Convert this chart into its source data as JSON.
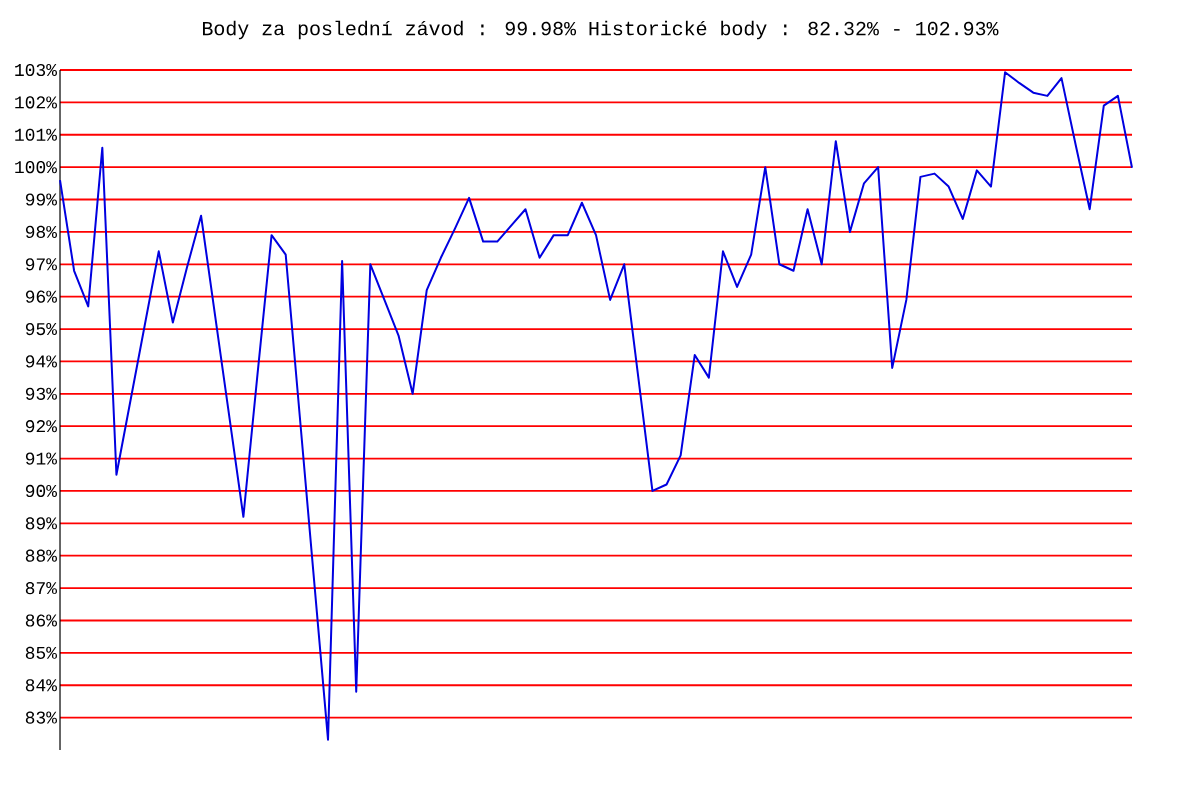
{
  "chart_data": {
    "type": "line",
    "title": "Body za poslední závod : 99.98%  Historické body : 82.32% - 102.93%",
    "categories": [
      null,
      null,
      null,
      null,
      null,
      null,
      null,
      null,
      null,
      null,
      null,
      null,
      null,
      null,
      null,
      null,
      null,
      null,
      null,
      null,
      null,
      null,
      null,
      null,
      null,
      null,
      null,
      null,
      null,
      null,
      null,
      null,
      null,
      null,
      null,
      null,
      null,
      null,
      null,
      null,
      null,
      null,
      null,
      null,
      null,
      null,
      null,
      null,
      null,
      null,
      null,
      null,
      null,
      null,
      null,
      null,
      null,
      null,
      null,
      null,
      null,
      null,
      null,
      null,
      null,
      null,
      null,
      null,
      null,
      null,
      null,
      null,
      null,
      null,
      null,
      null,
      null
    ],
    "series": [
      {
        "color": "#0000e0",
        "values": [
          99.6,
          96.8,
          95.7,
          100.6,
          90.5,
          92.8,
          95.1,
          97.4,
          95.2,
          96.9,
          98.5,
          95.4,
          92.3,
          89.2,
          93.6,
          97.9,
          97.3,
          92.3,
          87.3,
          82.32,
          97.1,
          83.8,
          97.0,
          95.9,
          94.8,
          93.0,
          96.2,
          97.2,
          98.1,
          99.05,
          97.7,
          97.7,
          98.2,
          98.7,
          97.2,
          97.9,
          97.9,
          98.9,
          97.9,
          95.9,
          97.0,
          93.5,
          90.0,
          90.2,
          91.1,
          94.2,
          93.5,
          97.4,
          96.3,
          97.3,
          100.0,
          97.0,
          96.8,
          98.7,
          97.0,
          100.8,
          98.0,
          99.5,
          100.0,
          93.8,
          95.9,
          99.7,
          99.8,
          99.4,
          98.4,
          99.9,
          99.4,
          102.93,
          102.6,
          102.3,
          102.2,
          102.75,
          100.7,
          98.7,
          101.9,
          102.2,
          99.98
        ]
      }
    ],
    "ylim": [
      82,
      103
    ],
    "yticks": [
      {
        "value": 83,
        "label": "83%"
      },
      {
        "value": 84,
        "label": "84%"
      },
      {
        "value": 85,
        "label": "85%"
      },
      {
        "value": 86,
        "label": "86%"
      },
      {
        "value": 87,
        "label": "87%"
      },
      {
        "value": 88,
        "label": "88%"
      },
      {
        "value": 89,
        "label": "89%"
      },
      {
        "value": 90,
        "label": "90%"
      },
      {
        "value": 91,
        "label": "91%"
      },
      {
        "value": 92,
        "label": "92%"
      },
      {
        "value": 93,
        "label": "93%"
      },
      {
        "value": 94,
        "label": "94%"
      },
      {
        "value": 95,
        "label": "95%"
      },
      {
        "value": 96,
        "label": "96%"
      },
      {
        "value": 97,
        "label": "97%"
      },
      {
        "value": 98,
        "label": "98%"
      },
      {
        "value": 99,
        "label": "99%"
      },
      {
        "value": 100,
        "label": "100%"
      },
      {
        "value": 101,
        "label": "101%"
      },
      {
        "value": 102,
        "label": "102%"
      },
      {
        "value": 103,
        "label": "103%"
      }
    ],
    "grid": "y",
    "tick_labels": "y",
    "legend": false,
    "marker": "none",
    "line_style": "solid"
  }
}
